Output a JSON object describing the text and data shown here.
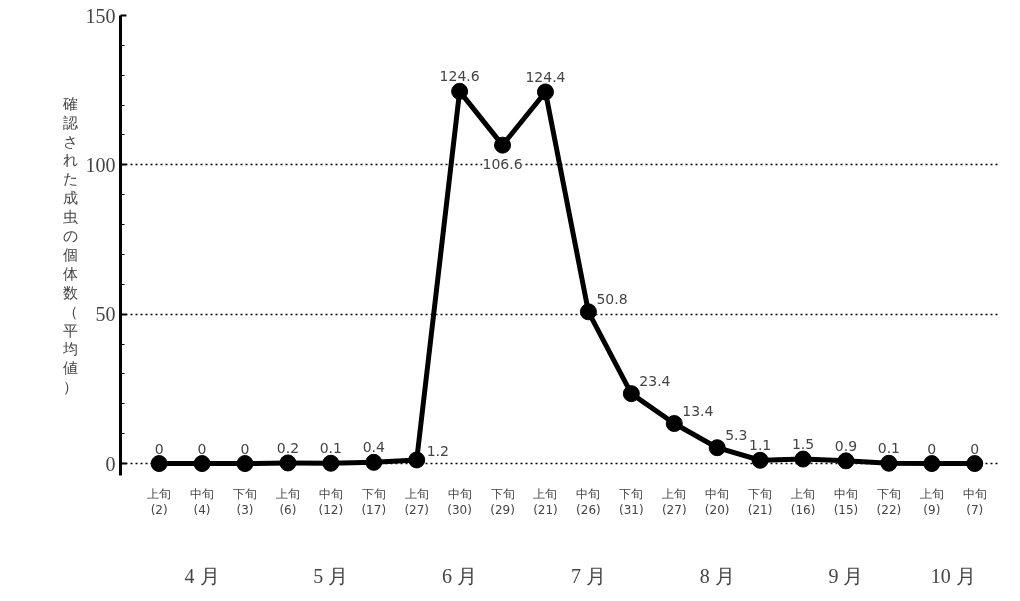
{
  "chart_data": {
    "type": "line",
    "ylabel": "確認された成虫の個体数（平均値）",
    "categories": [
      "上旬\n(2)",
      "中旬\n(4)",
      "下旬\n(3)",
      "上旬\n(6)",
      "中旬\n(12)",
      "下旬\n(17)",
      "上旬\n(27)",
      "中旬\n(30)",
      "下旬\n(29)",
      "上旬\n(21)",
      "中旬\n(26)",
      "下旬\n(31)",
      "上旬\n(27)",
      "中旬\n(20)",
      "下旬\n(21)",
      "上旬\n(16)",
      "中旬\n(15)",
      "下旬\n(22)",
      "上旬\n(9)",
      "中旬\n(7)"
    ],
    "series": [
      {
        "color": "#000000",
        "values": [
          0,
          0,
          0,
          0.2,
          0.1,
          0.4,
          1.2,
          124.6,
          106.6,
          124.4,
          50.8,
          23.4,
          13.4,
          5.3,
          1.1,
          1.5,
          0.9,
          0.1,
          0,
          0
        ]
      }
    ],
    "annotations": [
      "4 月",
      "5 月",
      "6 月",
      "7 月",
      "8 月",
      "9 月",
      "10 月"
    ],
    "ylim": [
      -4,
      150
    ],
    "yticks": [
      0,
      50,
      100,
      150
    ],
    "grid": "y",
    "marker": "circle",
    "line_style": "solid",
    "data_labels": true
  }
}
